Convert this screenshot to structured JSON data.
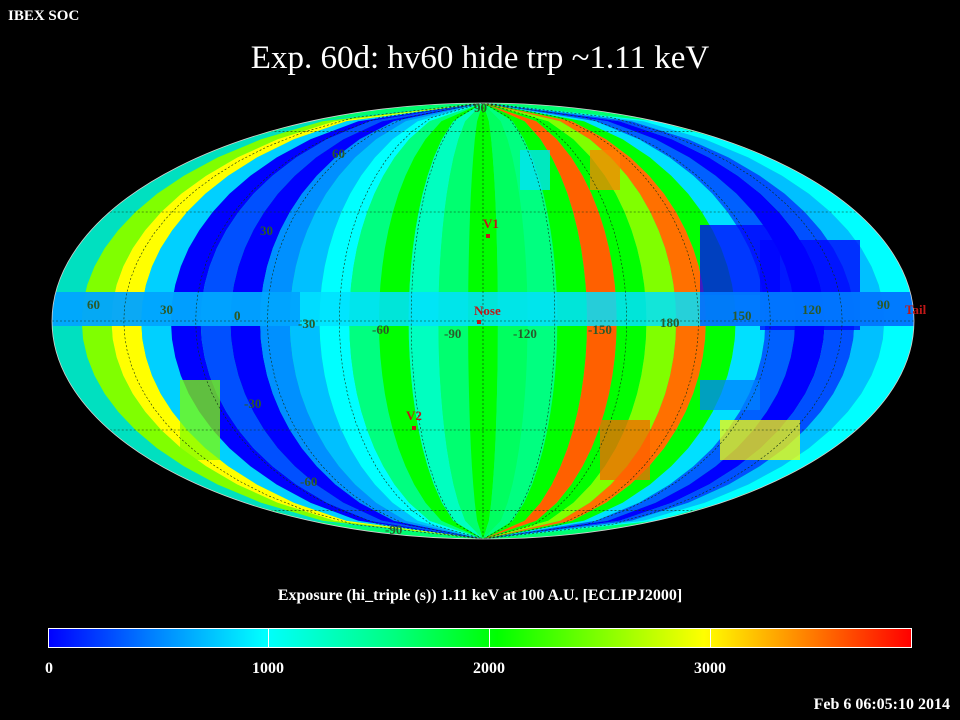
{
  "header": {
    "organization": "IBEX SOC",
    "title": "Exp.   60d: hv60 hide trp ~1.11 keV"
  },
  "map": {
    "projection": "Mollweide",
    "latitude_labels": [
      "90",
      "60",
      "30",
      "0",
      "-30",
      "-60",
      "-90"
    ],
    "longitude_labels": [
      "60",
      "30",
      "0",
      "-30",
      "-60",
      "-90",
      "-120",
      "-150",
      "180",
      "150",
      "120",
      "90"
    ],
    "markers": [
      "V1",
      "Nose",
      "V2",
      "Tail"
    ],
    "colors": {
      "marker": "#c01818",
      "grid": "#203020",
      "label": "#2a5a2a"
    }
  },
  "colorbar": {
    "title": "Exposure (hi_triple (s))  1.11 keV at 100 A.U. [ECLIPJ2000]",
    "ticks": [
      "0",
      "1000",
      "2000",
      "3000"
    ],
    "range": [
      0,
      3900
    ],
    "colormap": [
      "#0000ff",
      "#0080ff",
      "#00ffff",
      "#00ff80",
      "#00ff00",
      "#80ff00",
      "#ffff00",
      "#ff8000",
      "#ff0000"
    ]
  },
  "footer": {
    "timestamp": "Feb  6 06:05:10 2014"
  }
}
